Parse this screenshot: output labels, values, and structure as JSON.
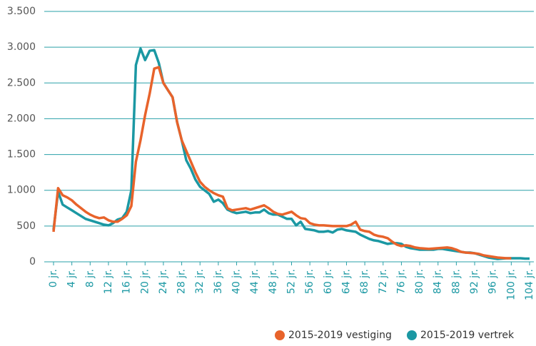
{
  "chart_data": {
    "type": "line",
    "categories": [
      "0 jr.",
      null,
      null,
      null,
      "4 jr.",
      null,
      null,
      null,
      "8 jr.",
      null,
      null,
      null,
      "12 jr.",
      null,
      null,
      null,
      "16 jr.",
      null,
      null,
      null,
      "20 jr.",
      null,
      null,
      null,
      "24 jr.",
      null,
      null,
      null,
      "28 jr.",
      null,
      null,
      null,
      "32 jr.",
      null,
      null,
      null,
      "36 jr.",
      null,
      null,
      null,
      "40 jr.",
      null,
      null,
      null,
      "44 jr.",
      null,
      null,
      null,
      "48 jr.",
      null,
      null,
      null,
      "52 jr.",
      null,
      null,
      null,
      "56 jr.",
      null,
      null,
      null,
      "60 jr.",
      null,
      null,
      null,
      "64 jr.",
      null,
      null,
      null,
      "68 jr.",
      null,
      null,
      null,
      "72 jr.",
      null,
      null,
      null,
      "76 jr.",
      null,
      null,
      null,
      "80 jr.",
      null,
      null,
      null,
      "84 jr.",
      null,
      null,
      null,
      "88 jr.",
      null,
      null,
      null,
      "92 jr.",
      null,
      null,
      null,
      "96 jr.",
      null,
      null,
      null,
      "100 jr.",
      null,
      null,
      null,
      "104 jr."
    ],
    "series": [
      {
        "name": "2015-2019 vestiging",
        "color": "#e8632b",
        "values": [
          420,
          1030,
          930,
          900,
          860,
          800,
          750,
          700,
          660,
          630,
          610,
          620,
          580,
          560,
          560,
          600,
          650,
          780,
          1400,
          1700,
          2050,
          2350,
          2700,
          2720,
          2500,
          2400,
          2300,
          1950,
          1700,
          1550,
          1400,
          1250,
          1120,
          1050,
          1000,
          960,
          930,
          910,
          750,
          720,
          730,
          740,
          750,
          730,
          750,
          770,
          790,
          750,
          700,
          670,
          660,
          680,
          700,
          650,
          610,
          600,
          540,
          520,
          510,
          510,
          505,
          500,
          500,
          500,
          500,
          520,
          560,
          450,
          430,
          420,
          380,
          360,
          350,
          330,
          280,
          240,
          220,
          230,
          220,
          200,
          190,
          185,
          180,
          185,
          190,
          195,
          200,
          190,
          170,
          140,
          130,
          125,
          120,
          110,
          90,
          80,
          70,
          60,
          55,
          50,
          50,
          null,
          null,
          null,
          null
        ]
      },
      {
        "name": "2015-2019 vertrek",
        "color": "#1b98a3",
        "values": [
          450,
          980,
          800,
          760,
          720,
          680,
          640,
          600,
          580,
          560,
          540,
          520,
          510,
          540,
          590,
          610,
          700,
          1000,
          2750,
          2980,
          2820,
          2950,
          2960,
          2780,
          2500,
          2400,
          2300,
          1950,
          1700,
          1420,
          1300,
          1150,
          1050,
          1000,
          950,
          840,
          870,
          820,
          730,
          700,
          680,
          690,
          700,
          680,
          690,
          690,
          730,
          680,
          660,
          660,
          630,
          600,
          600,
          510,
          560,
          460,
          450,
          440,
          420,
          420,
          430,
          410,
          450,
          460,
          440,
          430,
          420,
          380,
          350,
          320,
          300,
          290,
          270,
          250,
          260,
          260,
          250,
          210,
          190,
          180,
          170,
          170,
          170,
          170,
          180,
          180,
          170,
          160,
          150,
          140,
          130,
          130,
          120,
          100,
          80,
          60,
          50,
          40,
          45,
          50,
          50,
          50,
          50,
          45,
          45
        ]
      }
    ],
    "ylim": [
      0,
      3500
    ],
    "yticks": [
      0,
      500,
      {
        "value": 1000,
        "label": "1.000"
      },
      {
        "value": 1500,
        "label": "1.500"
      },
      {
        "value": 2000,
        "label": "2.000"
      },
      {
        "value": 2500,
        "label": "2.500"
      },
      {
        "value": 3000,
        "label": "3.000"
      },
      {
        "value": 3500,
        "label": "3.500"
      }
    ],
    "grid": true,
    "legend": "bottom-right"
  }
}
